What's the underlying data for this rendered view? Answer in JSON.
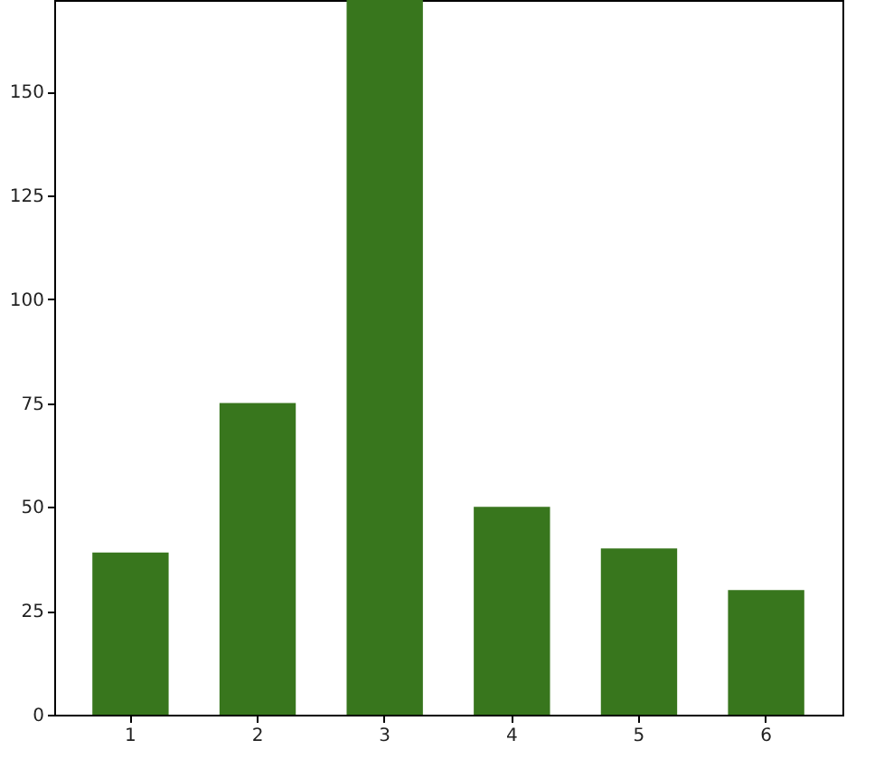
{
  "chart_data": {
    "type": "bar",
    "categories": [
      "1",
      "2",
      "3",
      "4",
      "5",
      "6"
    ],
    "values": [
      39,
      75,
      172,
      50,
      40,
      30
    ],
    "color": "#38761d",
    "ylim": [
      0,
      172
    ],
    "yticks": [
      0,
      25,
      50,
      75,
      100,
      125,
      150
    ],
    "grid": false
  }
}
